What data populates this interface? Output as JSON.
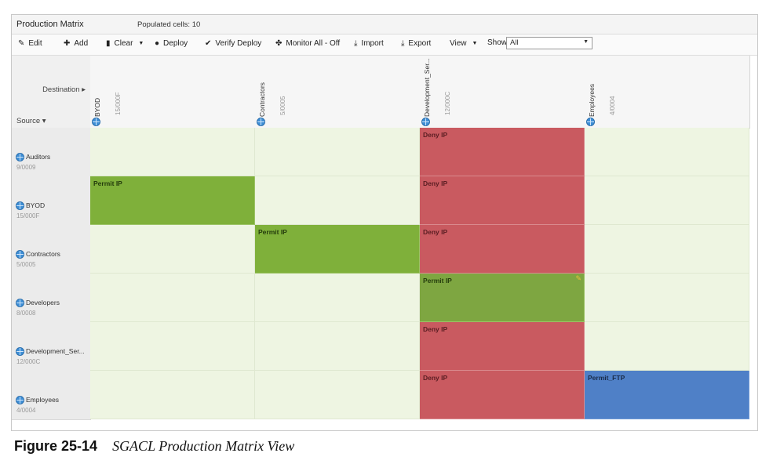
{
  "window": {
    "title": "Production Matrix",
    "populated_cells": "Populated cells: 10"
  },
  "toolbar": {
    "edit": "Edit",
    "add": "Add",
    "clear": "Clear",
    "deploy": "Deploy",
    "verify_deploy": "Verify Deploy",
    "monitor_all": "Monitor All - Off",
    "import": "Import",
    "export": "Export",
    "view": "View",
    "show_label": "Show",
    "show_value": "All"
  },
  "matrix": {
    "destination_label": "Destination ▸",
    "source_label": "Source ▾",
    "columns": [
      {
        "name": "BYOD",
        "tag": "15/000F"
      },
      {
        "name": "Contractors",
        "tag": "5/0005"
      },
      {
        "name": "Development_Ser...",
        "tag": "12/000C"
      },
      {
        "name": "Employees",
        "tag": "4/0004"
      }
    ],
    "rows": [
      {
        "name": "Auditors",
        "tag": "9/0009"
      },
      {
        "name": "BYOD",
        "tag": "15/000F"
      },
      {
        "name": "Contractors",
        "tag": "5/0005"
      },
      {
        "name": "Developers",
        "tag": "8/0008"
      },
      {
        "name": "Development_Ser...",
        "tag": "12/000C"
      },
      {
        "name": "Employees",
        "tag": "4/0004"
      }
    ],
    "cells": [
      [
        "",
        "",
        "Deny IP",
        ""
      ],
      [
        "Permit IP",
        "",
        "Deny IP",
        ""
      ],
      [
        "",
        "Permit IP",
        "Deny IP",
        ""
      ],
      [
        "",
        "",
        "Permit IP",
        ""
      ],
      [
        "",
        "",
        "Deny IP",
        ""
      ],
      [
        "",
        "",
        "Deny IP",
        "Permit_FTP"
      ]
    ],
    "colors": {
      "deny": "#c95a60",
      "permit": "#7fb03a",
      "custom": "#4f80c7",
      "empty": "#eef5e2"
    }
  },
  "caption": {
    "number": "Figure 25-14",
    "text": "SGACL Production Matrix View"
  }
}
